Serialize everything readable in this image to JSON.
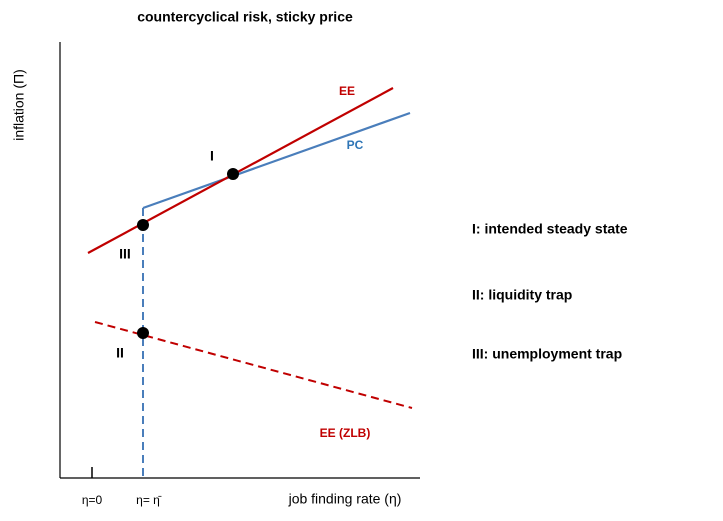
{
  "title": "countercyclical risk, sticky price",
  "y_axis_label": "inflation  (Π)",
  "x_axis_label": "job finding rate (η)",
  "x_ticks": [
    "η=0",
    "η= η̄"
  ],
  "curves": {
    "ee": "EE",
    "pc": "PC",
    "ee_zlb": "EE (ZLB)"
  },
  "points": [
    "I",
    "II",
    "III"
  ],
  "legend": [
    "I: intended steady state",
    "II: liquidity trap",
    "III: unemployment trap"
  ]
}
